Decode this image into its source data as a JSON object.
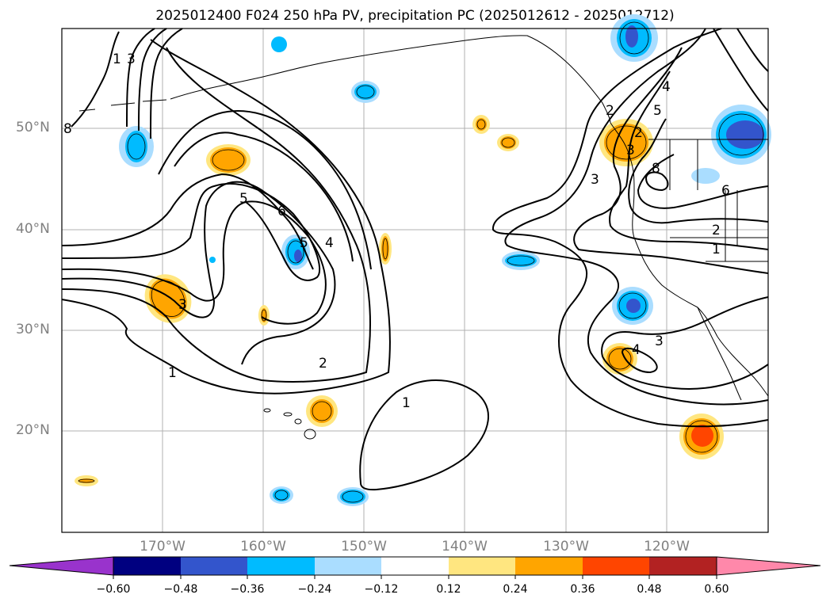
{
  "title": "2025012400 F024 250 hPa PV, precipitation PC (2025012612 - 2025012712)",
  "lat_labels": [
    "50°N",
    "40°N",
    "30°N",
    "20°N"
  ],
  "lon_labels": [
    "170°W",
    "160°W",
    "150°W",
    "140°W",
    "130°W",
    "120°W"
  ],
  "contour_labels": [
    "1",
    "3",
    "8",
    "5",
    "6",
    "5",
    "4",
    "3",
    "2",
    "1",
    "1",
    "2",
    "3",
    "4",
    "5",
    "2",
    "3",
    "8",
    "6",
    "2",
    "1",
    "4",
    "3"
  ],
  "colorbar": {
    "ticks": [
      "−0.60",
      "−0.48",
      "−0.36",
      "−0.24",
      "−0.12",
      "0.12",
      "0.24",
      "0.36",
      "0.48",
      "0.60"
    ],
    "colors": [
      "#9933cc",
      "#000080",
      "#3355cc",
      "#00bbff",
      "#aaddff",
      "#ffffff",
      "#ffe680",
      "#ffa500",
      "#ff4500",
      "#b22222",
      "#ff88aa"
    ]
  },
  "colors": {
    "grid": "#b0b0b0",
    "label_gray": "#808080",
    "neg_light": "#aaddff",
    "neg_mid": "#00bbff",
    "neg_dark": "#3355cc",
    "pos_light": "#ffe680",
    "pos_mid": "#ffa500",
    "pos_dark": "#ff4500"
  }
}
